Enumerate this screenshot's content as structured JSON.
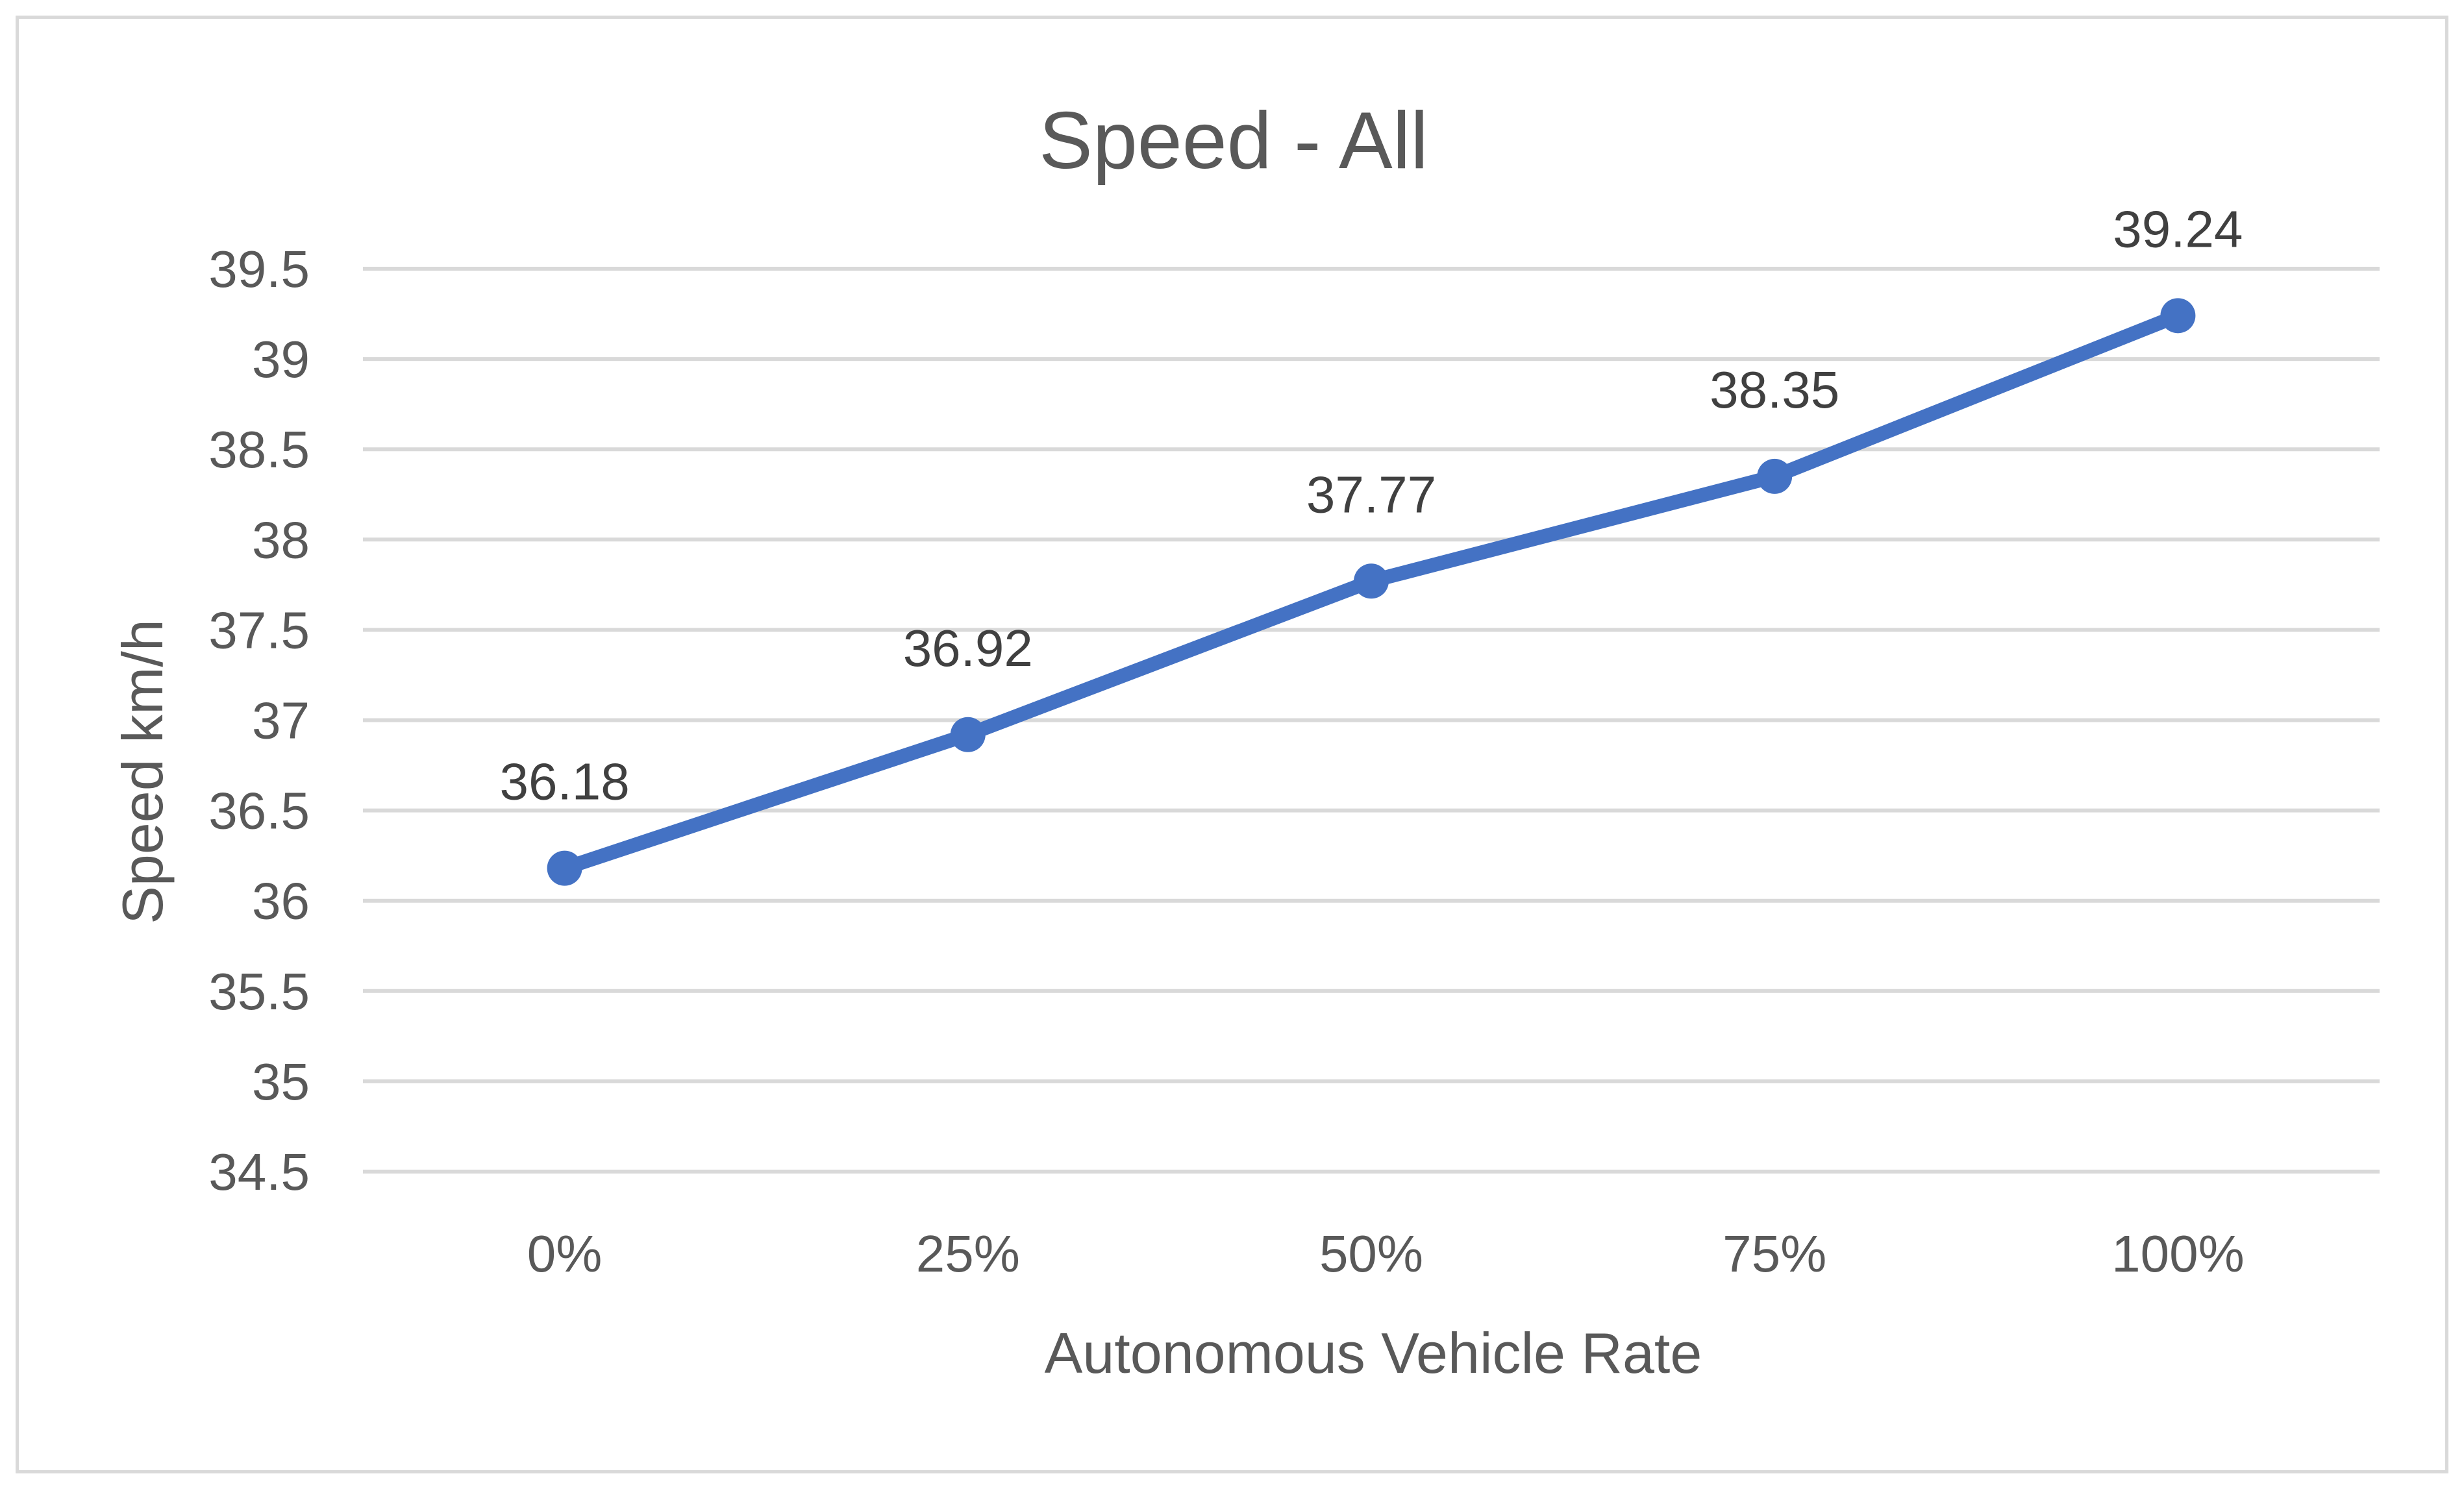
{
  "chart_data": {
    "type": "line",
    "title": "Speed - All",
    "xlabel": "Autonomous Vehicle Rate",
    "ylabel": "Speed  km/h",
    "categories": [
      "0%",
      "25%",
      "50%",
      "75%",
      "100%"
    ],
    "series": [
      {
        "values": [
          36.18,
          36.92,
          37.77,
          38.35,
          39.24
        ],
        "color": "#4472c4"
      }
    ],
    "data_labels": [
      "36.18",
      "36.92",
      "37.77",
      "38.35",
      "39.24"
    ],
    "ylim": [
      34.5,
      39.5
    ],
    "yticks": [
      34.5,
      35,
      35.5,
      36,
      36.5,
      37,
      37.5,
      38,
      38.5,
      39,
      39.5
    ],
    "ytick_labels": [
      "34.5",
      "35",
      "35.5",
      "36",
      "36.5",
      "37",
      "37.5",
      "38",
      "38.5",
      "39",
      "39.5"
    ],
    "grid": true,
    "gridline_color": "#d9d9d9",
    "legend": "none"
  }
}
